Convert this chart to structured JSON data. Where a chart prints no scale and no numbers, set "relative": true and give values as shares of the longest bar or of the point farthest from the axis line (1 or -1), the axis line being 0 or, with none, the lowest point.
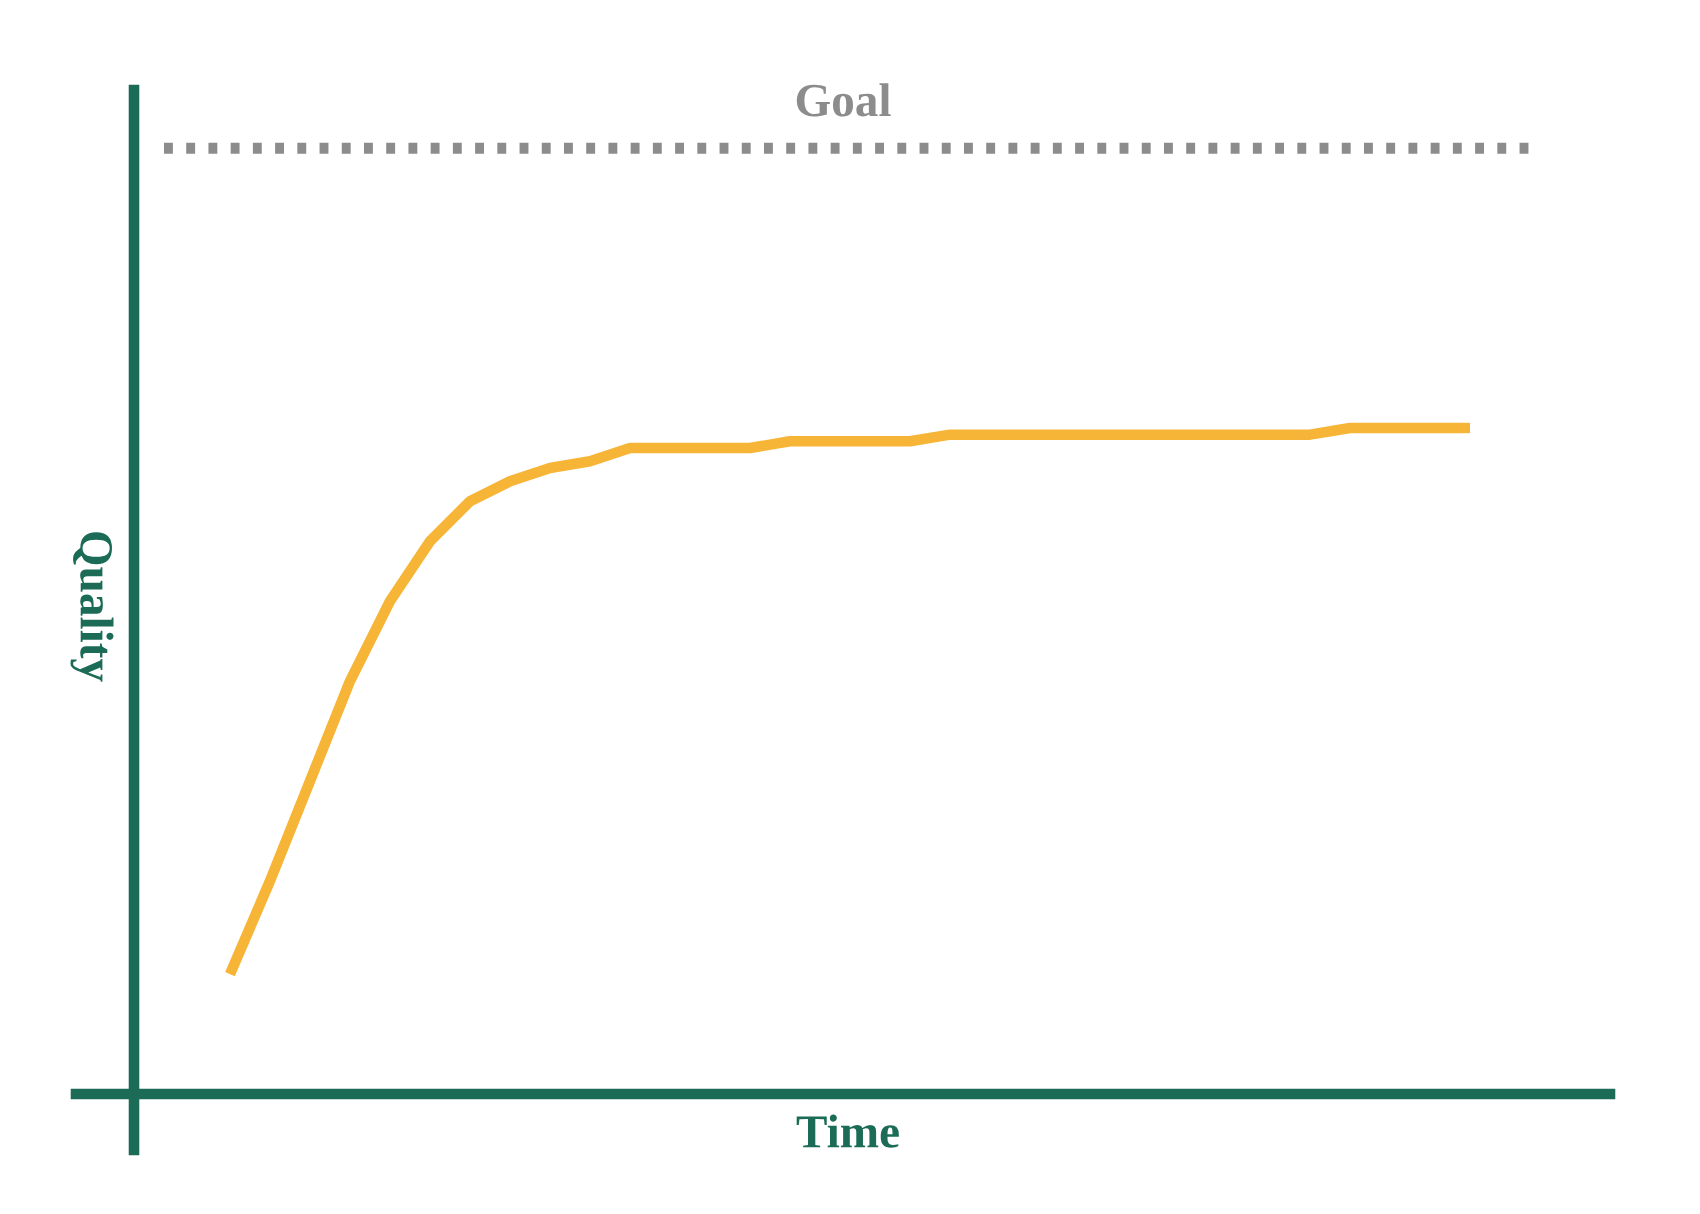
{
  "chart_data": {
    "type": "line",
    "relative": true,
    "xlabel": "Time",
    "ylabel": "Quality",
    "categories": [
      null,
      null,
      null,
      null,
      null,
      null,
      null,
      null,
      null,
      null,
      null,
      null,
      null,
      null,
      null,
      null,
      null,
      null,
      null,
      null,
      null,
      null,
      null,
      null,
      null,
      null,
      null,
      null,
      null,
      null,
      null,
      null
    ],
    "series": [
      {
        "color": "#f7b538",
        "values": [
          0.18,
          0.32,
          0.47,
          0.62,
          0.74,
          0.83,
          0.89,
          0.92,
          0.94,
          0.95,
          0.97,
          0.97,
          0.97,
          0.97,
          0.98,
          0.98,
          0.98,
          0.98,
          0.99,
          0.99,
          0.99,
          0.99,
          0.99,
          0.99,
          0.99,
          0.99,
          0.99,
          0.99,
          1.0,
          1.0,
          1.0,
          1.0
        ]
      }
    ],
    "ref_lines": [
      {
        "axis": "y",
        "value": 1.42,
        "label": "Goal",
        "color": "#8c8c8c",
        "line_style": "dotted"
      }
    ],
    "marker": "none",
    "line_style": "solid"
  }
}
